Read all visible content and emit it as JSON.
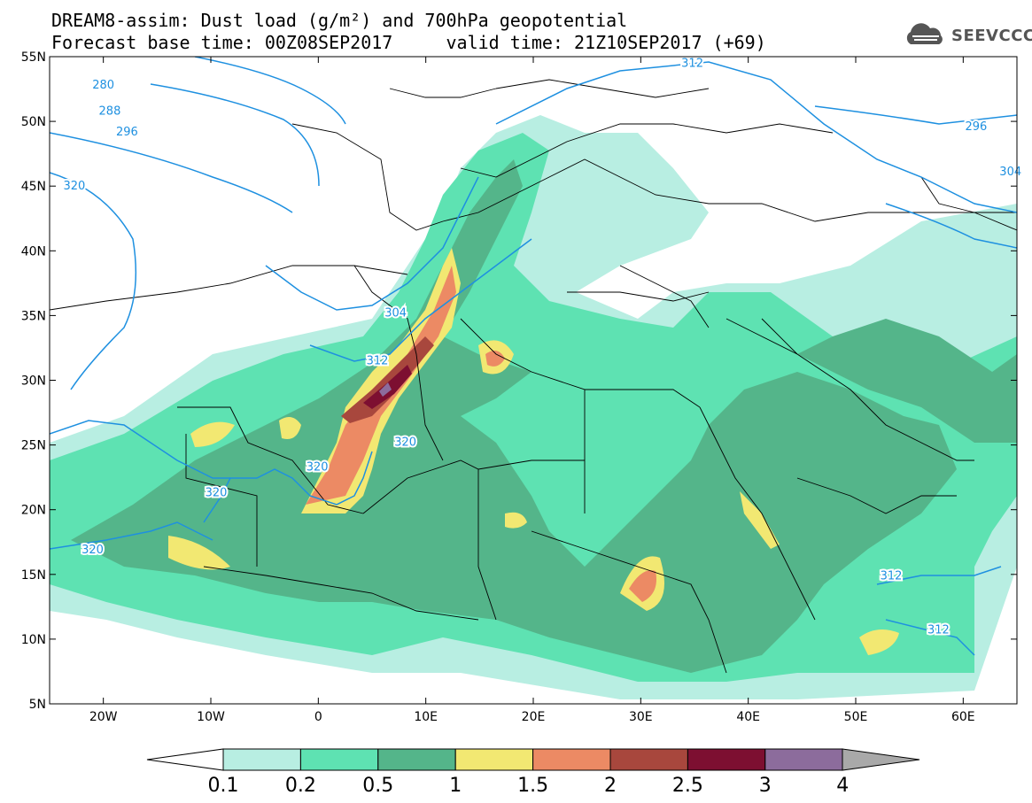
{
  "header": {
    "title_line1": "DREAM8-assim: Dust load (g/m²) and 700hPa geopotential",
    "title_line2": "Forecast base time: 00Z08SEP2017     valid time: 21Z10SEP2017 (+69)"
  },
  "logo": {
    "text": "SEEVCCC",
    "icon": "cloud-icon"
  },
  "map": {
    "lon_range": [
      -25,
      65
    ],
    "lat_range": [
      5,
      55
    ],
    "lat_ticks": [
      {
        "lat": 55,
        "label": "55N"
      },
      {
        "lat": 50,
        "label": "50N"
      },
      {
        "lat": 45,
        "label": "45N"
      },
      {
        "lat": 40,
        "label": "40N"
      },
      {
        "lat": 35,
        "label": "35N"
      },
      {
        "lat": 30,
        "label": "30N"
      },
      {
        "lat": 25,
        "label": "25N"
      },
      {
        "lat": 20,
        "label": "20N"
      },
      {
        "lat": 15,
        "label": "15N"
      },
      {
        "lat": 10,
        "label": "10N"
      },
      {
        "lat": 5,
        "label": "5N"
      }
    ],
    "lon_ticks": [
      {
        "lon": -20,
        "label": "20W"
      },
      {
        "lon": -10,
        "label": "10W"
      },
      {
        "lon": 0,
        "label": "0"
      },
      {
        "lon": 10,
        "label": "10E"
      },
      {
        "lon": 20,
        "label": "20E"
      },
      {
        "lon": 30,
        "label": "30E"
      },
      {
        "lon": 40,
        "label": "40E"
      },
      {
        "lon": 50,
        "label": "50E"
      },
      {
        "lon": 60,
        "label": "60E"
      }
    ],
    "contour_labels": [
      {
        "text": "280",
        "lon": -20,
        "lat": 52.8
      },
      {
        "text": "288",
        "lon": -19.4,
        "lat": 50.8
      },
      {
        "text": "296",
        "lon": -17.8,
        "lat": 49.2
      },
      {
        "text": "320",
        "lon": -22.7,
        "lat": 45.0
      },
      {
        "text": "312",
        "lon": 34.8,
        "lat": 54.5
      },
      {
        "text": "296",
        "lon": 61.2,
        "lat": 49.6
      },
      {
        "text": "304",
        "lon": 64.4,
        "lat": 46.1
      },
      {
        "text": "304",
        "lon": 7.2,
        "lat": 35.2
      },
      {
        "text": "312",
        "lon": 5.5,
        "lat": 31.5
      },
      {
        "text": "320",
        "lon": 8.1,
        "lat": 25.2
      },
      {
        "text": "320",
        "lon": -0.1,
        "lat": 23.3
      },
      {
        "text": "320",
        "lon": -9.5,
        "lat": 21.3
      },
      {
        "text": "320",
        "lon": -21.0,
        "lat": 16.9
      },
      {
        "text": "312",
        "lon": 53.3,
        "lat": 14.9
      },
      {
        "text": "312",
        "lon": 57.7,
        "lat": 10.7
      }
    ]
  },
  "legend": {
    "colors": [
      "#b8eee2",
      "#5ee2b2",
      "#54b58a",
      "#f2e872",
      "#ec8a64",
      "#a8473d",
      "#7d0f31",
      "#8c6c9c"
    ],
    "low_arrow_color": "#ffffff",
    "high_arrow_color": "#a9a9a9",
    "labels": [
      "0.1",
      "0.2",
      "0.5",
      "1",
      "1.5",
      "2",
      "2.5",
      "3",
      "4"
    ]
  },
  "colors": {
    "contour": "#1e90e0",
    "border": "#000000"
  }
}
